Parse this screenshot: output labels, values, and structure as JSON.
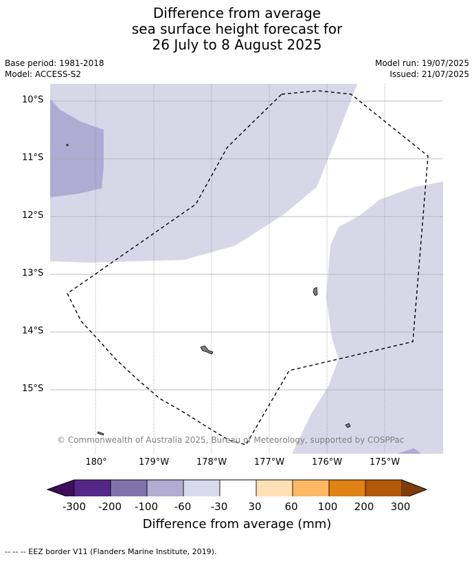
{
  "title": {
    "line1": "Difference from average",
    "line2": "sea surface height forecast for",
    "line3": "26 July to 8 August 2025"
  },
  "meta": {
    "base_period": "Base period: 1981-2018",
    "model": "Model: ACCESS-S2",
    "model_run": "Model run: 19/07/2025",
    "issued": "Issued: 21/07/2025"
  },
  "map": {
    "lat_labels": [
      "10°S",
      "11°S",
      "12°S",
      "13°S",
      "14°S",
      "15°S"
    ],
    "lon_labels": [
      "180°",
      "179°W",
      "178°W",
      "177°W",
      "176°W",
      "175°W"
    ],
    "copyright": "© Commonwealth of Australia 2025, Bureau of Meteorology, supported by COSPPac",
    "colors": {
      "class_m60_m30": "#d7d7e8",
      "class_m100_m60": "#b0abd2",
      "class_m200_m100": "#8073ac",
      "land": "#808080",
      "grid": "#a8a8a8"
    }
  },
  "colorbar": {
    "ticks": [
      "-300",
      "-200",
      "-100",
      "-60",
      "-30",
      "30",
      "60",
      "100",
      "200",
      "300"
    ],
    "colors": [
      "#3f0f5c",
      "#542788",
      "#8073ac",
      "#b2abd2",
      "#d8daeb",
      "#ffffff",
      "#fee0b6",
      "#fdb863",
      "#e08214",
      "#b35806",
      "#7f3b08"
    ],
    "label": "Difference from average (mm)"
  },
  "footnote": "--  --  -- EEZ border V11 (Flanders Marine Institute, 2019)."
}
